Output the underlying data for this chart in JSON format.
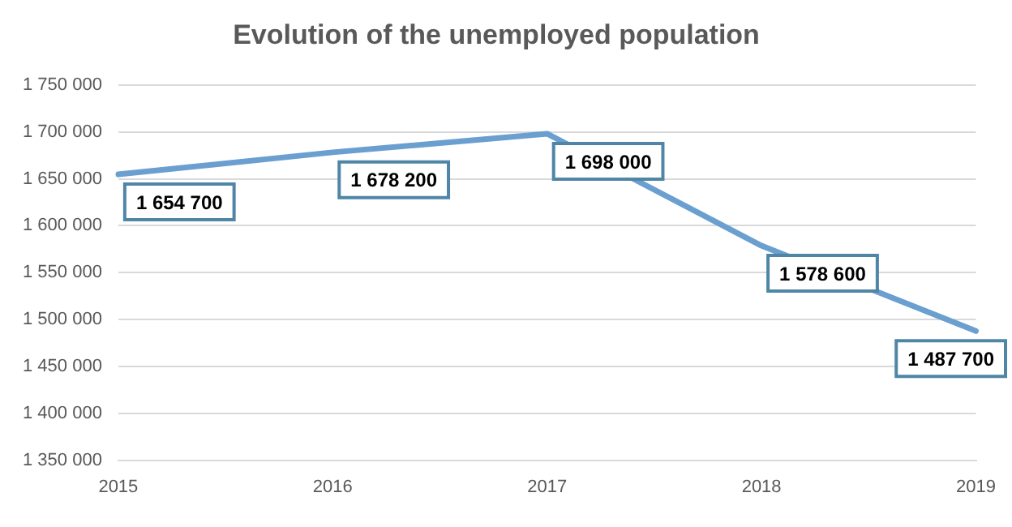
{
  "chart_data": {
    "type": "line",
    "title": "Evolution of the unemployed population",
    "categories": [
      "2015",
      "2016",
      "2017",
      "2018",
      "2019"
    ],
    "series": [
      {
        "color": "#6a9fd0",
        "values": [
          1654700,
          1678200,
          1698000,
          1578600,
          1487700
        ],
        "value_labels": [
          "1 654 700",
          "1 678 200",
          "1 698 000",
          "1 578 600",
          "1 487 700"
        ]
      }
    ],
    "ylim": [
      1350000,
      1750000
    ],
    "yticks": [
      {
        "value": 1350000,
        "label": "1 350 000"
      },
      {
        "value": 1400000,
        "label": "1 400 000"
      },
      {
        "value": 1450000,
        "label": "1 450 000"
      },
      {
        "value": 1500000,
        "label": "1 500 000"
      },
      {
        "value": 1550000,
        "label": "1 550 000"
      },
      {
        "value": 1600000,
        "label": "1 600 000"
      },
      {
        "value": 1650000,
        "label": "1 650 000"
      },
      {
        "value": 1700000,
        "label": "1 700 000"
      },
      {
        "value": 1750000,
        "label": "1 750 000"
      }
    ],
    "grid": "y",
    "legend": false,
    "marker": "none",
    "line_style": "solid"
  }
}
